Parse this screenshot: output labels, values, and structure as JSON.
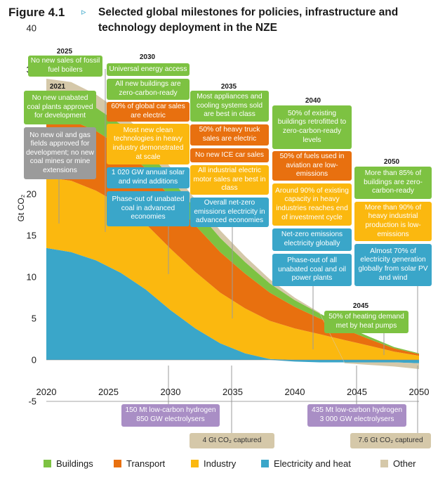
{
  "figure": {
    "label": "Figure 4.1",
    "marker": "▹",
    "title": "Selected global milestones for policies, infrastructure and technology deployment in the NZE"
  },
  "chart_data": {
    "type": "area",
    "stacked": true,
    "ylabel": "Gt CO₂",
    "ylim": [
      -5,
      40
    ],
    "yticks": [
      -5,
      0,
      5,
      10,
      15,
      20,
      25,
      30,
      35,
      40
    ],
    "xlim": [
      2020,
      2050
    ],
    "xticks": [
      2020,
      2025,
      2030,
      2035,
      2040,
      2045,
      2050
    ],
    "x": [
      2020,
      2022,
      2024,
      2026,
      2028,
      2030,
      2032,
      2034,
      2036,
      2038,
      2040,
      2042,
      2044,
      2046,
      2048,
      2050
    ],
    "series": [
      {
        "name": "Electricity and heat",
        "color": "#3aa6c9",
        "values": [
          13.5,
          13.0,
          12.0,
          10.5,
          8.5,
          6.0,
          3.8,
          2.0,
          0.8,
          0.1,
          -0.2,
          -0.3,
          -0.3,
          -0.3,
          -0.3,
          -0.4
        ]
      },
      {
        "name": "Industry",
        "color": "#fbb80f",
        "values": [
          8.5,
          8.6,
          8.4,
          8.2,
          7.9,
          7.4,
          6.8,
          6.1,
          5.4,
          4.6,
          3.8,
          3.1,
          2.4,
          1.7,
          1.0,
          0.5
        ]
      },
      {
        "name": "Transport",
        "color": "#e8700f",
        "values": [
          7.2,
          7.3,
          7.2,
          7.0,
          6.7,
          6.2,
          5.6,
          4.9,
          4.2,
          3.4,
          2.6,
          1.9,
          1.3,
          0.8,
          0.4,
          0.2
        ]
      },
      {
        "name": "Buildings",
        "color": "#7dc242",
        "values": [
          2.9,
          2.9,
          2.8,
          2.7,
          2.5,
          2.3,
          2.0,
          1.7,
          1.4,
          1.1,
          0.8,
          0.6,
          0.4,
          0.3,
          0.15,
          0.1
        ]
      },
      {
        "name": "Other",
        "color": "#d5c8a9",
        "values": [
          1.8,
          1.7,
          1.6,
          1.5,
          1.4,
          1.3,
          1.1,
          0.9,
          0.7,
          0.5,
          0.3,
          0.1,
          -0.1,
          -0.3,
          -0.5,
          -0.7
        ]
      }
    ],
    "legend_position": "bottom"
  },
  "milestones": {
    "y2025": "2025",
    "y2030": "2030",
    "y2021": "2021",
    "y2035": "2035",
    "y2040": "2040",
    "y2050": "2050",
    "y2045": "2045",
    "m2025": "No new sales of fossil fuel boilers",
    "m2030a": "Universal energy access",
    "m2030b": "All new buildings are zero-carbon-ready",
    "m2030c": "60% of global car sales are electric",
    "m2030d": "Most new clean technologies in heavy industry demonstrated at scale",
    "m2030e": "1 020 GW annual solar and wind additions",
    "m2030f": "Phase-out of unabated coal in advanced economies",
    "m2021a": "No new unabated coal plants approved for development",
    "m2021b": "No new oil and gas fields approved for development; no new coal mines or mine extensions",
    "m2035a": "Most appliances and cooling systems sold are best in class",
    "m2035b": "50% of heavy truck sales are electric",
    "m2035c": "No new ICE car sales",
    "m2035d": "All industrial electric motor sales are best in class",
    "m2035e": "Overall net-zero emissions electricity in advanced economies",
    "m2040a": "50% of existing buildings retrofitted to zero-carbon-ready levels",
    "m2040b": "50% of fuels used in aviation are low-emissions",
    "m2040c": "Around 90% of existing capacity in heavy industries reaches end of investment cycle",
    "m2040d": "Net-zero emissions electricity globally",
    "m2040e": "Phase-out of all unabated coal and oil power plants",
    "m2050a": "More than 85% of buildings are zero-carbon-ready",
    "m2050b": "More than 90% of heavy industrial production is low-emissions",
    "m2050c": "Almost 70% of electricity generation globally from solar PV and wind",
    "m2045": "50% of heating demand met by heat pumps",
    "b2030h": "150 Mt low-carbon hydrogen 850 GW electrolysers",
    "b2035c": "4 Gt CO₂ captured",
    "b2050h": "435 Mt low-carbon hydrogen 3 000 GW electrolysers",
    "b2050c": "7.6 Gt CO₂ captured"
  },
  "legend": [
    "Buildings",
    "Transport",
    "Industry",
    "Electricity and heat",
    "Other"
  ]
}
